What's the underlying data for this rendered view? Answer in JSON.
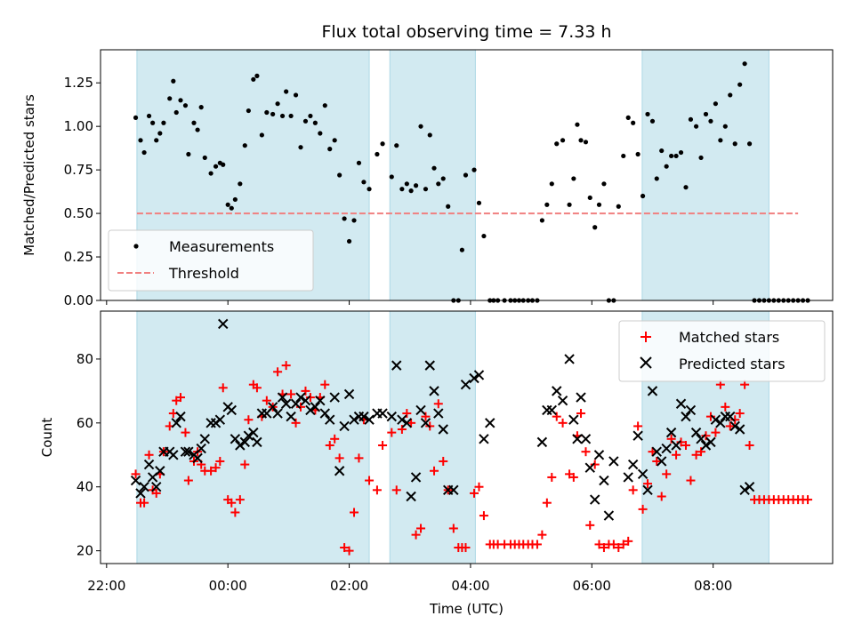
{
  "chart_data": [
    {
      "type": "scatter",
      "title": "Flux total observing time = 7.33 h",
      "ylabel": "Matched/Predicted stars",
      "ylim": [
        0,
        1.44
      ],
      "yticks": [
        "0.00",
        "0.25",
        "0.50",
        "0.75",
        "1.00",
        "1.25"
      ],
      "threshold": 0.5,
      "legend_position": "lower-left",
      "legend": [
        "Measurements",
        "Threshold"
      ],
      "colors": {
        "points": "#000000",
        "threshold": "#f08080",
        "band": "#add8e6"
      },
      "shaded_intervals_h": [
        [
          22.5,
          2.33
        ],
        [
          2.67,
          4.08
        ],
        [
          6.83,
          8.92
        ]
      ],
      "series": [
        {
          "name": "Measurements",
          "x_h": [
            22.48,
            22.56,
            22.62,
            22.7,
            22.76,
            22.82,
            22.88,
            22.94,
            23.04,
            23.1,
            23.15,
            23.22,
            23.3,
            23.35,
            23.44,
            23.5,
            23.56,
            23.62,
            23.72,
            23.8,
            23.87,
            23.92,
            24.0,
            24.06,
            24.12,
            24.2,
            24.28,
            24.34,
            24.42,
            24.48,
            24.56,
            24.64,
            24.74,
            24.82,
            24.9,
            24.96,
            25.04,
            25.12,
            25.2,
            25.28,
            25.36,
            25.44,
            25.52,
            25.6,
            25.68,
            25.76,
            25.84,
            25.92,
            26.0,
            26.08,
            26.16,
            26.24,
            26.33,
            26.46,
            26.55,
            26.7,
            26.78,
            26.87,
            26.95,
            27.02,
            27.1,
            27.18,
            27.26,
            27.33,
            27.4,
            27.47,
            27.55,
            27.63,
            27.72,
            27.8,
            27.86,
            27.92,
            28.06,
            28.14,
            28.22,
            28.32,
            28.38,
            28.45,
            28.56,
            28.66,
            28.73,
            28.8,
            28.87,
            28.95,
            29.02,
            29.1,
            29.18,
            29.26,
            29.34,
            29.42,
            29.52,
            29.63,
            29.7,
            29.76,
            29.82,
            29.9,
            29.97,
            30.05,
            30.12,
            30.2,
            30.28,
            30.36,
            30.44,
            30.52,
            30.6,
            30.68,
            30.76,
            30.84,
            30.92,
            31.0,
            31.07,
            31.15,
            31.23,
            31.31,
            31.39,
            31.47,
            31.55,
            31.63,
            31.72,
            31.8,
            31.88,
            31.96,
            32.04,
            32.12,
            32.2,
            32.28,
            32.36,
            32.44,
            32.52,
            32.6,
            32.68,
            32.76,
            32.84,
            32.92,
            33.0,
            33.08,
            33.16,
            33.24,
            33.32,
            33.4,
            33.48,
            33.56
          ],
          "y": [
            1.05,
            0.92,
            0.85,
            1.06,
            1.02,
            0.92,
            0.96,
            1.02,
            1.16,
            1.26,
            1.08,
            1.15,
            1.12,
            0.84,
            1.02,
            0.98,
            1.11,
            0.82,
            0.73,
            0.77,
            0.79,
            0.78,
            0.55,
            0.53,
            0.58,
            0.67,
            0.89,
            1.09,
            1.27,
            1.29,
            0.95,
            1.08,
            1.07,
            1.13,
            1.06,
            1.2,
            1.06,
            1.18,
            0.88,
            1.03,
            1.06,
            1.02,
            0.96,
            1.12,
            0.87,
            0.92,
            0.72,
            0.47,
            0.34,
            0.46,
            0.79,
            0.68,
            0.64,
            0.84,
            0.9,
            0.71,
            0.89,
            0.64,
            0.67,
            0.63,
            0.66,
            1.0,
            0.64,
            0.95,
            0.76,
            0.67,
            0.7,
            0.54,
            0.0,
            0.0,
            0.29,
            0.72,
            0.75,
            0.56,
            0.37,
            0.0,
            0.0,
            0.0,
            0.0,
            0.0,
            0.0,
            0.0,
            0.0,
            0.0,
            0.0,
            0.0,
            0.46,
            0.55,
            0.67,
            0.9,
            0.92,
            0.55,
            0.7,
            1.01,
            0.92,
            0.91,
            0.59,
            0.42,
            0.55,
            0.67,
            0.0,
            0.0,
            0.54,
            0.83,
            1.05,
            1.02,
            0.84,
            0.6,
            1.07,
            1.03,
            0.7,
            0.86,
            0.77,
            0.83,
            0.83,
            0.85,
            0.65,
            1.04,
            1.0,
            0.82,
            1.07,
            1.03,
            1.13,
            0.92,
            1.0,
            1.18,
            0.9,
            1.24,
            1.36,
            0.9,
            0.0,
            0.0,
            0.0,
            0.0,
            0.0,
            0.0,
            0.0,
            0.0,
            0.0,
            0.0,
            0.0,
            0.0
          ]
        }
      ]
    },
    {
      "type": "scatter",
      "title": "",
      "xlabel": "Time (UTC)",
      "ylabel": "Count",
      "ylim": [
        16,
        95
      ],
      "yticks": [
        "20",
        "40",
        "60",
        "80"
      ],
      "xticks": [
        "22:00",
        "00:00",
        "02:00",
        "04:00",
        "06:00",
        "08:00"
      ],
      "xlim_h": [
        21.9,
        33.97
      ],
      "legend_position": "top-right",
      "legend": [
        "Matched stars",
        "Predicted stars"
      ],
      "colors": {
        "matched": "#ff0000",
        "predicted": "#000000",
        "band": "#add8e6"
      },
      "shaded_intervals_h": [
        [
          22.5,
          2.33
        ],
        [
          2.67,
          4.08
        ],
        [
          6.83,
          8.92
        ]
      ],
      "series": [
        {
          "name": "Matched stars",
          "x_h": [
            22.48,
            22.56,
            22.62,
            22.7,
            22.76,
            22.82,
            22.88,
            22.94,
            23.04,
            23.1,
            23.15,
            23.22,
            23.3,
            23.35,
            23.44,
            23.5,
            23.56,
            23.62,
            23.72,
            23.8,
            23.87,
            23.92,
            24.0,
            24.06,
            24.12,
            24.2,
            24.28,
            24.34,
            24.42,
            24.48,
            24.56,
            24.64,
            24.74,
            24.82,
            24.9,
            24.96,
            25.04,
            25.12,
            25.2,
            25.28,
            25.36,
            25.44,
            25.52,
            25.6,
            25.68,
            25.76,
            25.84,
            25.92,
            26.0,
            26.08,
            26.16,
            26.24,
            26.33,
            26.46,
            26.55,
            26.7,
            26.78,
            26.87,
            26.95,
            27.02,
            27.1,
            27.18,
            27.26,
            27.33,
            27.4,
            27.47,
            27.55,
            27.63,
            27.72,
            27.8,
            27.86,
            27.92,
            28.06,
            28.14,
            28.22,
            28.32,
            28.38,
            28.45,
            28.56,
            28.66,
            28.73,
            28.8,
            28.87,
            28.95,
            29.02,
            29.1,
            29.18,
            29.26,
            29.34,
            29.42,
            29.52,
            29.63,
            29.7,
            29.76,
            29.82,
            29.9,
            29.97,
            30.05,
            30.12,
            30.2,
            30.28,
            30.36,
            30.44,
            30.52,
            30.6,
            30.68,
            30.76,
            30.84,
            30.92,
            31.0,
            31.07,
            31.15,
            31.23,
            31.31,
            31.39,
            31.47,
            31.55,
            31.63,
            31.72,
            31.8,
            31.88,
            31.96,
            32.04,
            32.12,
            32.2,
            32.28,
            32.36,
            32.44,
            32.52,
            32.6,
            32.68,
            32.76,
            32.84,
            32.92,
            33.0,
            33.08,
            33.16,
            33.24,
            33.32,
            33.4,
            33.48,
            33.56
          ],
          "y": [
            44,
            35,
            35,
            50,
            39,
            38,
            44,
            51,
            59,
            63,
            67,
            68,
            57,
            42,
            48,
            51,
            47,
            45,
            45,
            46,
            48,
            71,
            36,
            35,
            32,
            36,
            47,
            61,
            72,
            71,
            62,
            67,
            65,
            76,
            69,
            78,
            69,
            60,
            65,
            70,
            68,
            64,
            68,
            72,
            53,
            55,
            49,
            21,
            20,
            32,
            49,
            61,
            42,
            39,
            53,
            57,
            39,
            58,
            63,
            60,
            25,
            27,
            62,
            59,
            45,
            66,
            48,
            39,
            27,
            21,
            21,
            21,
            38,
            40,
            31,
            22,
            22,
            22,
            22,
            22,
            22,
            22,
            22,
            22,
            22,
            22,
            25,
            35,
            43,
            62,
            60,
            44,
            43,
            56,
            63,
            51,
            28,
            47,
            22,
            21,
            22,
            22,
            21,
            22,
            23,
            39,
            59,
            33,
            41,
            51,
            48,
            37,
            44,
            55,
            50,
            54,
            53,
            42,
            50,
            51,
            56,
            62,
            57,
            72,
            65,
            59,
            61,
            63,
            72,
            53,
            36,
            36,
            36,
            36,
            36,
            36,
            36,
            36,
            36,
            36,
            36,
            36
          ]
        },
        {
          "name": "Predicted stars",
          "x_h": [
            22.48,
            22.56,
            22.62,
            22.7,
            22.76,
            22.82,
            22.88,
            22.94,
            23.04,
            23.1,
            23.15,
            23.22,
            23.3,
            23.35,
            23.44,
            23.5,
            23.56,
            23.62,
            23.72,
            23.8,
            23.87,
            23.92,
            24.0,
            24.06,
            24.12,
            24.2,
            24.28,
            24.34,
            24.42,
            24.48,
            24.56,
            24.64,
            24.74,
            24.82,
            24.9,
            24.96,
            25.04,
            25.12,
            25.2,
            25.28,
            25.36,
            25.44,
            25.52,
            25.6,
            25.68,
            25.76,
            25.84,
            25.92,
            26.0,
            26.08,
            26.16,
            26.24,
            26.33,
            26.46,
            26.55,
            26.7,
            26.78,
            26.87,
            26.95,
            27.02,
            27.1,
            27.18,
            27.26,
            27.33,
            27.4,
            27.47,
            27.55,
            27.63,
            27.72,
            27.8,
            27.86,
            27.92,
            28.06,
            28.14,
            28.22,
            28.32,
            28.38,
            28.45,
            28.56,
            28.66,
            28.73,
            28.8,
            28.87,
            28.95,
            29.02,
            29.1,
            29.18,
            29.26,
            29.34,
            29.42,
            29.52,
            29.63,
            29.7,
            29.76,
            29.82,
            29.9,
            29.97,
            30.05,
            30.12,
            30.2,
            30.28,
            30.36,
            30.44,
            30.52,
            30.6,
            30.68,
            30.76,
            30.84,
            30.92,
            31.0,
            31.07,
            31.15,
            31.23,
            31.31,
            31.39,
            31.47,
            31.55,
            31.63,
            31.72,
            31.8,
            31.88,
            31.96,
            32.04,
            32.12,
            32.2,
            32.28,
            32.36,
            32.44,
            32.52,
            32.6,
            32.68,
            32.76,
            32.84,
            32.92,
            33.0,
            33.08,
            33.16,
            33.24,
            33.32,
            33.4,
            33.48,
            33.56
          ],
          "y": [
            42,
            38,
            40,
            47,
            43,
            40,
            45,
            51,
            51,
            50,
            60,
            62,
            51,
            51,
            50,
            49,
            52,
            55,
            60,
            60,
            61,
            91,
            65,
            64,
            55,
            53,
            54,
            56,
            57,
            54,
            63,
            63,
            65,
            63,
            68,
            66,
            62,
            66,
            68,
            67,
            64,
            65,
            67,
            63,
            61,
            68,
            45,
            59,
            69,
            61,
            62,
            62,
            61,
            63,
            63,
            62,
            78,
            61,
            60,
            37,
            43,
            64,
            60,
            78,
            70,
            63,
            58,
            39,
            39,
            null,
            null,
            72,
            74,
            75,
            55,
            60,
            null,
            null,
            null,
            null,
            null,
            null,
            null,
            null,
            null,
            null,
            54,
            64,
            64,
            70,
            67,
            80,
            61,
            55,
            68,
            55,
            46,
            36,
            50,
            42,
            31,
            48,
            null,
            null,
            43,
            47,
            56,
            44,
            39,
            70,
            51,
            48,
            52,
            57,
            53,
            66,
            62,
            64,
            57,
            55,
            53,
            54,
            61,
            60,
            62,
            62,
            59,
            58,
            39,
            40,
            null,
            null,
            null,
            null,
            null,
            null,
            null,
            null,
            null,
            null,
            null,
            null
          ]
        }
      ]
    }
  ]
}
